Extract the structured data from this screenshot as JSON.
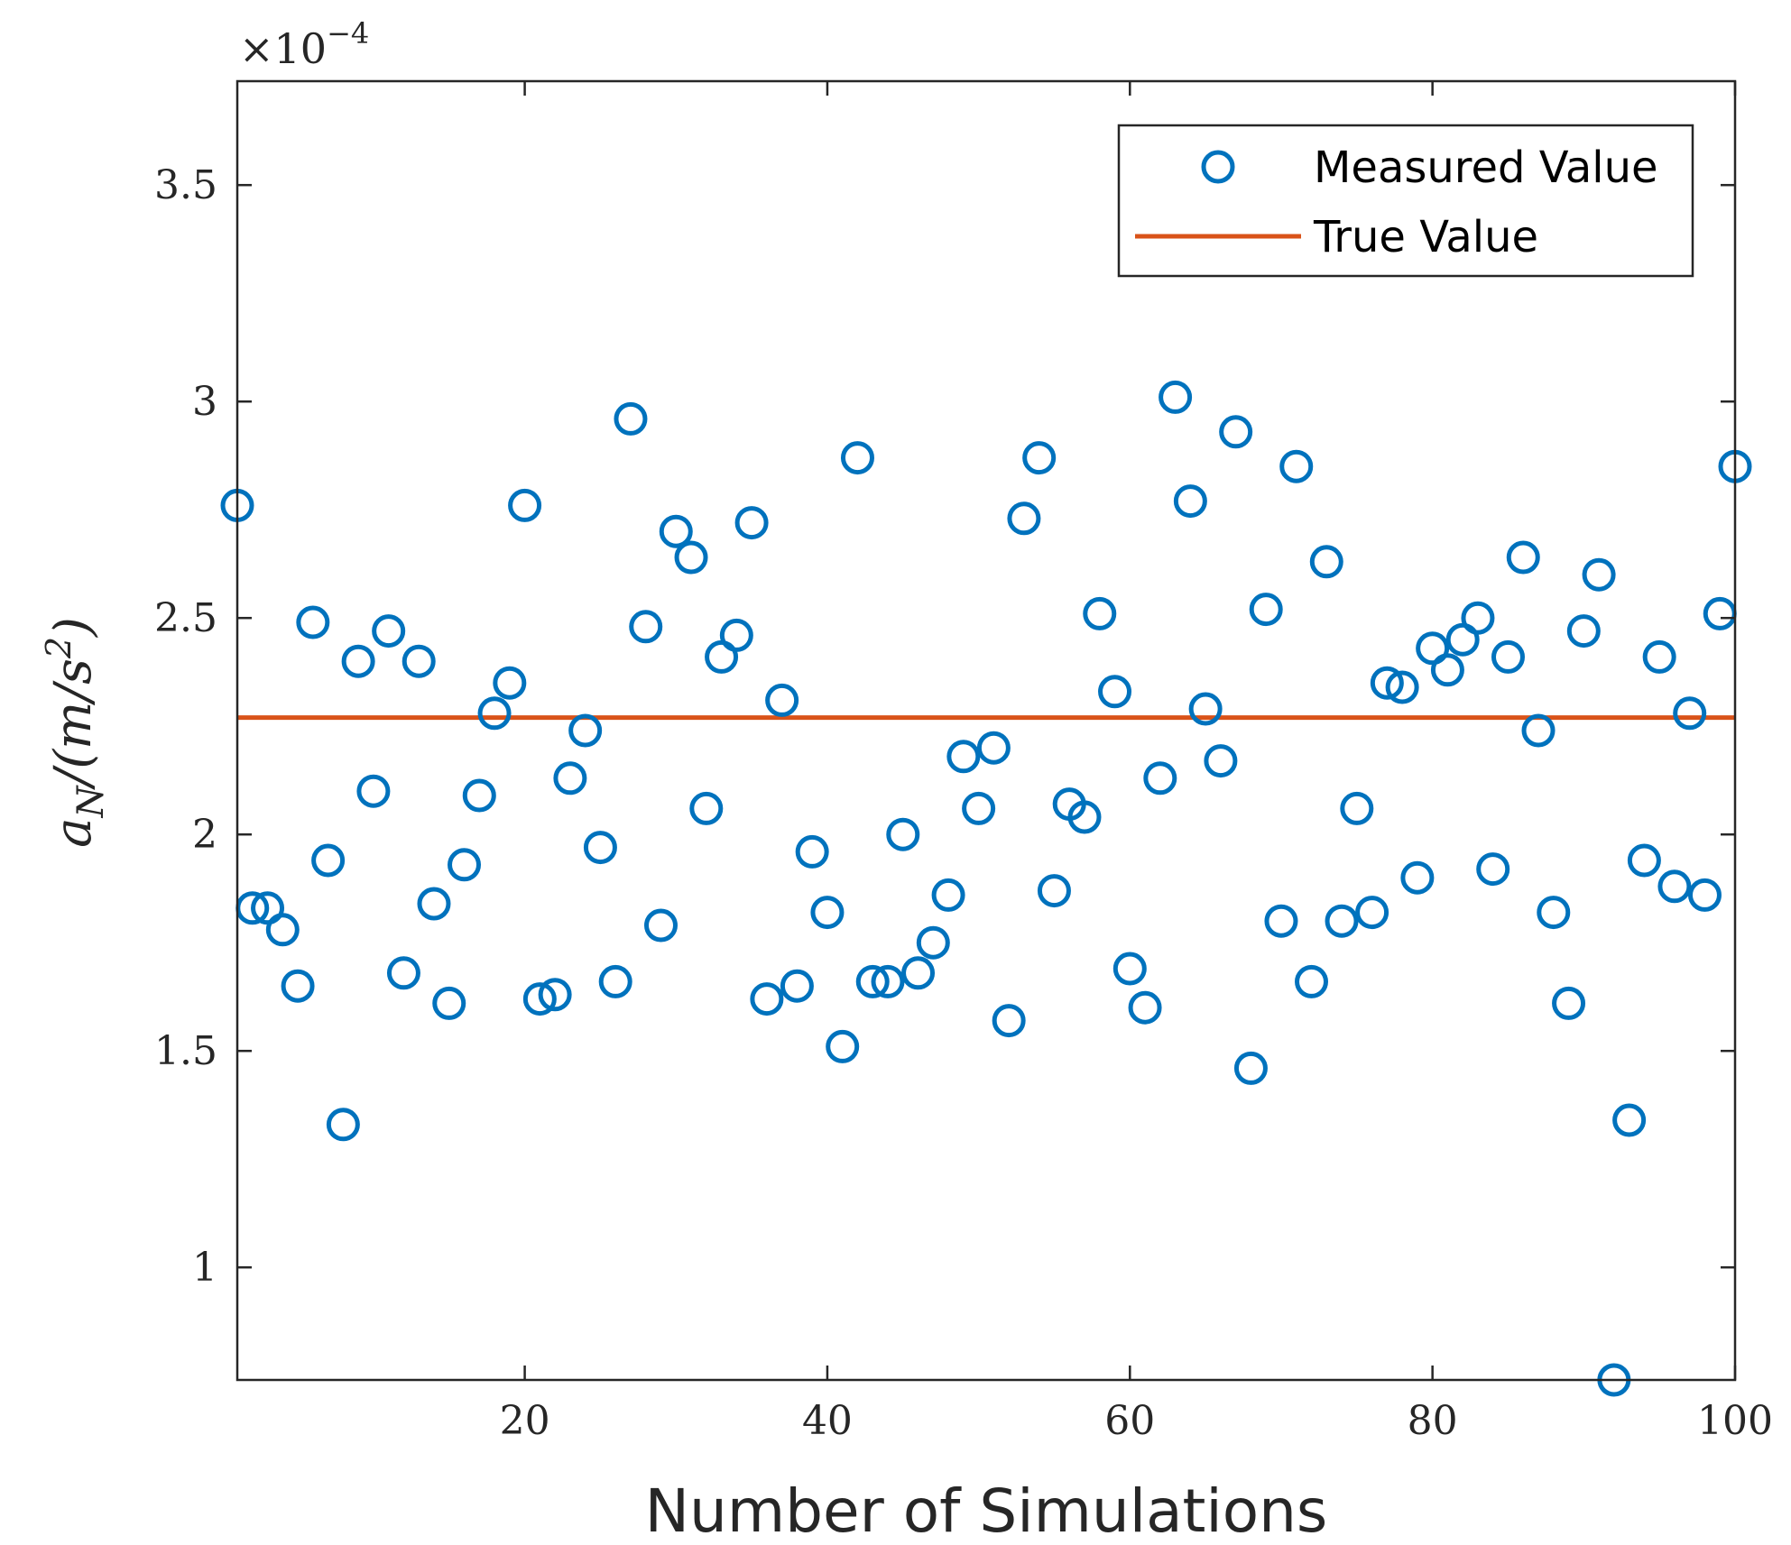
{
  "chart_data": {
    "type": "scatter",
    "title": "",
    "xlabel": "Number of Simulations",
    "ylabel": {
      "base": "a",
      "subscript": "N",
      "unit_open": "/(m/s",
      "unit_power": "2",
      "unit_close": ")"
    },
    "y_exponent": {
      "prefix": "×10",
      "power": "−4"
    },
    "xlim": [
      1,
      100
    ],
    "ylim": [
      0.74,
      3.74
    ],
    "x_ticks": [
      20,
      40,
      60,
      80,
      100
    ],
    "x_tick_labels": [
      "20",
      "40",
      "60",
      "80",
      "100"
    ],
    "y_ticks": [
      1,
      1.5,
      2,
      2.5,
      3,
      3.5
    ],
    "y_tick_labels": [
      "1",
      "1.5",
      "2",
      "2.5",
      "3",
      "3.5"
    ],
    "grid": false,
    "legend_position": "top-right",
    "series": [
      {
        "name": "Measured Value",
        "kind": "markers",
        "marker": "circle",
        "color": "#0072BD",
        "x": [
          1,
          2,
          3,
          4,
          5,
          6,
          7,
          8,
          9,
          10,
          11,
          12,
          13,
          14,
          15,
          16,
          17,
          18,
          19,
          20,
          21,
          22,
          23,
          24,
          25,
          26,
          27,
          28,
          29,
          30,
          31,
          32,
          33,
          34,
          35,
          36,
          37,
          38,
          39,
          40,
          41,
          42,
          43,
          44,
          45,
          46,
          47,
          48,
          49,
          50,
          51,
          52,
          53,
          54,
          55,
          56,
          57,
          58,
          59,
          60,
          61,
          62,
          63,
          64,
          65,
          66,
          67,
          68,
          69,
          70,
          71,
          72,
          73,
          74,
          75,
          76,
          77,
          78,
          79,
          80,
          81,
          82,
          83,
          84,
          85,
          86,
          87,
          88,
          89,
          90,
          91,
          92,
          93,
          94,
          95,
          96,
          97,
          98,
          99,
          100
        ],
        "y": [
          2.76,
          1.83,
          1.83,
          1.78,
          1.65,
          2.49,
          1.94,
          1.33,
          2.4,
          2.1,
          2.47,
          1.68,
          2.4,
          1.84,
          1.61,
          1.93,
          2.09,
          2.28,
          2.35,
          2.76,
          1.62,
          1.63,
          2.13,
          2.24,
          1.97,
          1.66,
          2.96,
          2.48,
          1.79,
          2.7,
          2.64,
          2.06,
          2.41,
          2.46,
          2.72,
          1.62,
          2.31,
          1.65,
          1.96,
          1.82,
          1.51,
          2.87,
          1.66,
          1.66,
          2.0,
          1.68,
          1.75,
          1.86,
          2.18,
          2.06,
          2.2,
          1.57,
          2.73,
          2.87,
          1.87,
          2.07,
          2.04,
          2.51,
          2.33,
          1.69,
          1.6,
          2.13,
          3.01,
          2.77,
          2.29,
          2.17,
          2.93,
          1.46,
          2.52,
          1.8,
          2.85,
          1.66,
          2.63,
          1.8,
          2.06,
          1.82,
          2.35,
          2.34,
          1.9,
          2.43,
          2.38,
          2.45,
          2.5,
          1.92,
          2.41,
          2.64,
          2.24,
          1.82,
          1.61,
          2.47,
          2.6,
          0.74,
          1.34,
          1.94,
          2.41,
          1.88,
          2.28,
          1.86,
          2.51,
          2.85
        ]
      },
      {
        "name": "True Value",
        "kind": "line",
        "color": "#D95319",
        "x": [
          1,
          100
        ],
        "y": [
          2.27,
          2.27
        ]
      }
    ]
  }
}
